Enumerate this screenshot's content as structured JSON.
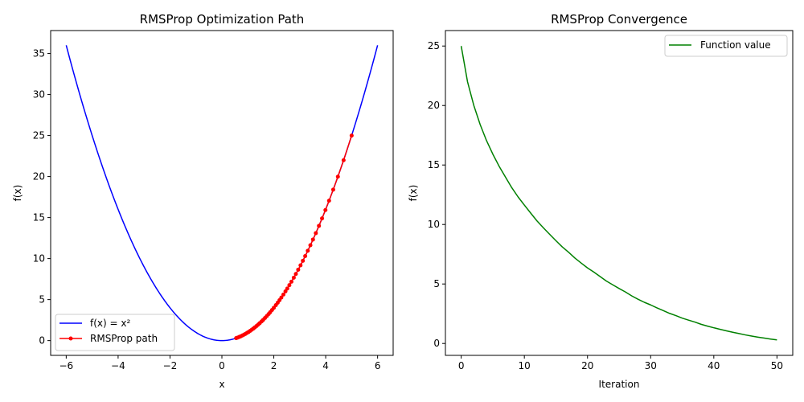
{
  "chart_data": [
    {
      "type": "line",
      "title": "RMSProp Optimization Path",
      "xlabel": "x",
      "ylabel": "f(x)",
      "xlim": [
        -6.6,
        6.6
      ],
      "ylim": [
        -1.8,
        37.8
      ],
      "xticks": [
        -6,
        -4,
        -2,
        0,
        2,
        4,
        6
      ],
      "yticks": [
        0,
        5,
        10,
        15,
        20,
        25,
        30,
        35
      ],
      "grid": false,
      "legend": {
        "position": "lower-left",
        "entries": [
          "f(x) = x²",
          "RMSProp path"
        ]
      },
      "series": [
        {
          "name": "f(x) = x²",
          "color": "#0000ff",
          "marker": "none",
          "function": "x^2",
          "x_range": [
            -6,
            6
          ]
        },
        {
          "name": "RMSProp path",
          "color": "#ff0000",
          "marker": "circle",
          "x": [
            5.0,
            4.69,
            4.47,
            4.29,
            4.13,
            3.99,
            3.86,
            3.74,
            3.62,
            3.51,
            3.41,
            3.31,
            3.21,
            3.12,
            3.03,
            2.94,
            2.85,
            2.77,
            2.68,
            2.6,
            2.52,
            2.45,
            2.37,
            2.29,
            2.22,
            2.15,
            2.08,
            2.0,
            1.93,
            1.86,
            1.8,
            1.73,
            1.66,
            1.59,
            1.53,
            1.46,
            1.4,
            1.34,
            1.27,
            1.21,
            1.15,
            1.09,
            1.03,
            0.97,
            0.91,
            0.85,
            0.79,
            0.73,
            0.67,
            0.61,
            0.55
          ]
        }
      ]
    },
    {
      "type": "line",
      "title": "RMSProp Convergence",
      "xlabel": "Iteration",
      "ylabel": "f(x)",
      "xlim": [
        -2.5,
        52.5
      ],
      "ylim": [
        -1.0,
        26.3
      ],
      "xticks": [
        0,
        10,
        20,
        30,
        40,
        50
      ],
      "yticks": [
        0,
        5,
        10,
        15,
        20,
        25
      ],
      "grid": false,
      "legend": {
        "position": "top-right",
        "entries": [
          "Function value"
        ]
      },
      "series": [
        {
          "name": "Function value",
          "color": "#008000",
          "marker": "none",
          "x": [
            0,
            1,
            2,
            3,
            4,
            5,
            6,
            7,
            8,
            9,
            10,
            11,
            12,
            13,
            14,
            15,
            16,
            17,
            18,
            19,
            20,
            21,
            22,
            23,
            24,
            25,
            26,
            27,
            28,
            29,
            30,
            31,
            32,
            33,
            34,
            35,
            36,
            37,
            38,
            39,
            40,
            41,
            42,
            43,
            44,
            45,
            46,
            47,
            48,
            49,
            50
          ],
          "y": [
            25.0,
            22.0,
            20.0,
            18.4,
            17.06,
            15.92,
            14.9,
            13.99,
            13.1,
            12.32,
            11.63,
            10.96,
            10.3,
            9.73,
            9.18,
            8.64,
            8.12,
            7.67,
            7.18,
            6.76,
            6.35,
            6.0,
            5.62,
            5.24,
            4.93,
            4.62,
            4.33,
            4.0,
            3.72,
            3.46,
            3.24,
            2.99,
            2.76,
            2.53,
            2.34,
            2.13,
            1.96,
            1.8,
            1.61,
            1.46,
            1.32,
            1.19,
            1.06,
            0.94,
            0.83,
            0.72,
            0.62,
            0.53,
            0.45,
            0.37,
            0.3
          ]
        }
      ]
    }
  ]
}
